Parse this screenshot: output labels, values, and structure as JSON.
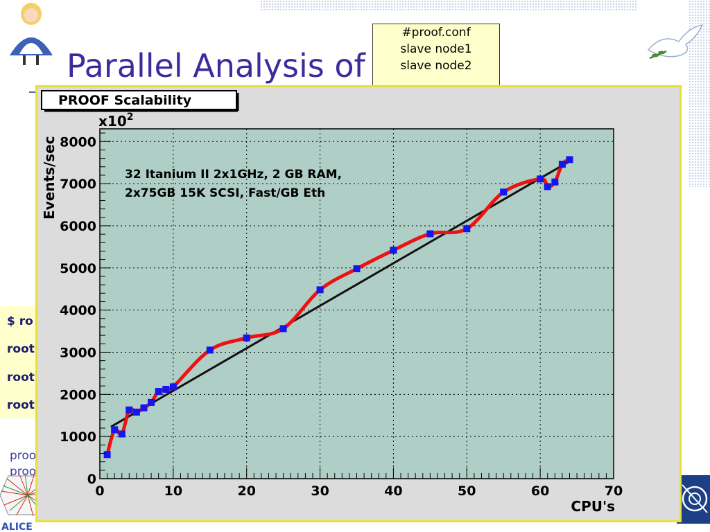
{
  "slide": {
    "title": "Parallel Analysis of Data",
    "note_lines": [
      "#proof.conf",
      "slave node1",
      "slave node2"
    ],
    "cmd_lines": [
      "$ ro",
      "root",
      "root",
      "root"
    ],
    "proof_lines": [
      "proo",
      "proo"
    ],
    "alice_logo_text": "ALICE"
  },
  "colors": {
    "title": "#3d2b9e",
    "plot_bg": "#afcec5",
    "marker": "#1515ee",
    "smooth_curve": "#ee1111",
    "fit_line": "#111111",
    "frame_border": "#e8e03a"
  },
  "icons": [
    "alice-cartoon-icon",
    "dove-icon",
    "alice-logo",
    "cern-logo"
  ],
  "chart_data": {
    "type": "scatter",
    "title": "PROOF Scalability",
    "xlabel": "CPU's",
    "ylabel": "Events/sec",
    "y_multiplier_label": "x10",
    "y_multiplier_exp": "2",
    "xlim": [
      0,
      70
    ],
    "ylim": [
      0,
      8300
    ],
    "x_ticks": [
      0,
      10,
      20,
      30,
      40,
      50,
      60,
      70
    ],
    "y_ticks": [
      0,
      1000,
      2000,
      3000,
      4000,
      5000,
      6000,
      7000,
      8000
    ],
    "grid": true,
    "annotation": [
      "32 Itanium II 2x1GHz, 2 GB RAM,",
      "2x75GB 15K SCSI, Fast/GB Eth"
    ],
    "series": [
      {
        "x": [
          1,
          2,
          3,
          4,
          5,
          6,
          7,
          8,
          9,
          10,
          15,
          20,
          25,
          30,
          35,
          40,
          45,
          50,
          55,
          60,
          61,
          62,
          63,
          64
        ],
        "y": [
          570,
          1160,
          1060,
          1630,
          1580,
          1680,
          1810,
          2070,
          2120,
          2180,
          3050,
          3340,
          3560,
          4480,
          4980,
          5420,
          5810,
          5930,
          6800,
          7110,
          6930,
          7040,
          7460,
          7570
        ]
      }
    ],
    "fit_line": {
      "x": [
        1.5,
        64
      ],
      "y": [
        1230,
        7530
      ]
    }
  }
}
